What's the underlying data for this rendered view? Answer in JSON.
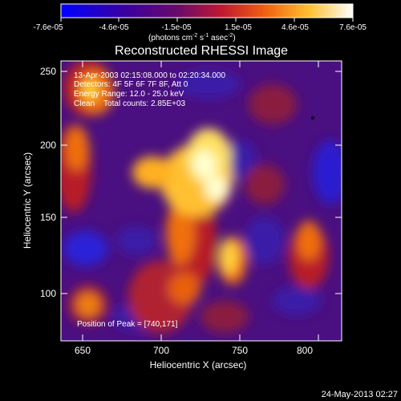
{
  "colorbar": {
    "tick_labels": [
      "-7.6e-05",
      "-4.6e-05",
      "-1.5e-05",
      "1.5e-05",
      "4.6e-05",
      "7.6e-05"
    ],
    "units_label": "(photons cm",
    "units_sup1": "-2",
    "units_mid": " s",
    "units_sup2": "-1",
    "units_end": " asec",
    "units_sup3": "-2",
    "units_close": ")",
    "colors": [
      "#0000ff",
      "#4b006f",
      "#9b0d4a",
      "#e8580f",
      "#ffd040",
      "#ffffff"
    ]
  },
  "title": "Reconstructed RHESSI Image",
  "info": {
    "line1": "13-Apr-2003 02:15:08.000 to 02:20:34.000",
    "line2": "Detectors: 4F 5F 6F 7F 8F, Att 0",
    "line3": "Energy Range: 12.0 - 25.0 keV",
    "line4": "Clean    Total counts: 2.85E+03",
    "peak": "Position of Peak = [740,171]"
  },
  "axes": {
    "xlabel": "Heliocentric X (arcsec)",
    "ylabel": "Heliocentric Y (arcsec)",
    "x_ticks": [
      "650",
      "700",
      "750",
      "800"
    ],
    "y_ticks": [
      "100",
      "150",
      "200",
      "250"
    ]
  },
  "footer": {
    "timestamp": "24-May-2013 02:27"
  }
}
